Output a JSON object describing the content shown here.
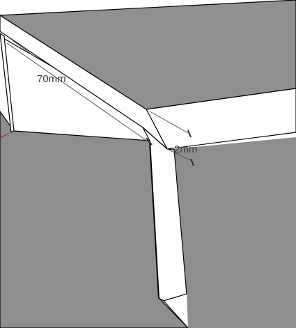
{
  "scene": {
    "colors": {
      "background": "#ffffff",
      "floor_shade": "#8e8e8e",
      "top_surface": "#909090",
      "lit_face": "#ffffff",
      "edge": "#000000",
      "dimension_line": "#555555",
      "axis_red": "#cc2222"
    },
    "dimensions": [
      {
        "label": "70mm"
      },
      {
        "label": "2mm"
      }
    ]
  }
}
